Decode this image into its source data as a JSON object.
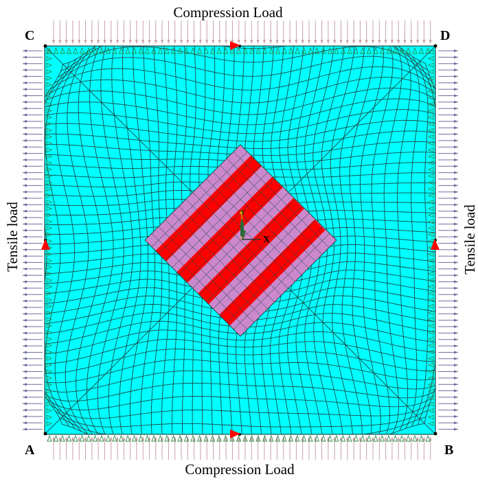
{
  "labels": {
    "top_load": "Compression Load",
    "bottom_load": "Compression Load",
    "left_load": "Tensile load",
    "right_load": "Tensile load",
    "corner_a": "A",
    "corner_b": "B",
    "corner_c": "C",
    "corner_d": "D",
    "axis_x": "X",
    "axis_y": "Y"
  },
  "colors": {
    "plate": "#00ffff",
    "mesh": "#1a4a4a",
    "patch": "#cc88cc",
    "strip": "#ff0000",
    "compression_arrow": "#c9a0a8",
    "tension_arrow": "#6e6e9e",
    "support": "#2f8a4a",
    "marker": "#ff0000"
  },
  "icons": {
    "support": "triangle-support-icon",
    "marker": "red-triangle-marker-icon",
    "axis": "coordinate-triad-icon"
  },
  "strip_count": 4
}
